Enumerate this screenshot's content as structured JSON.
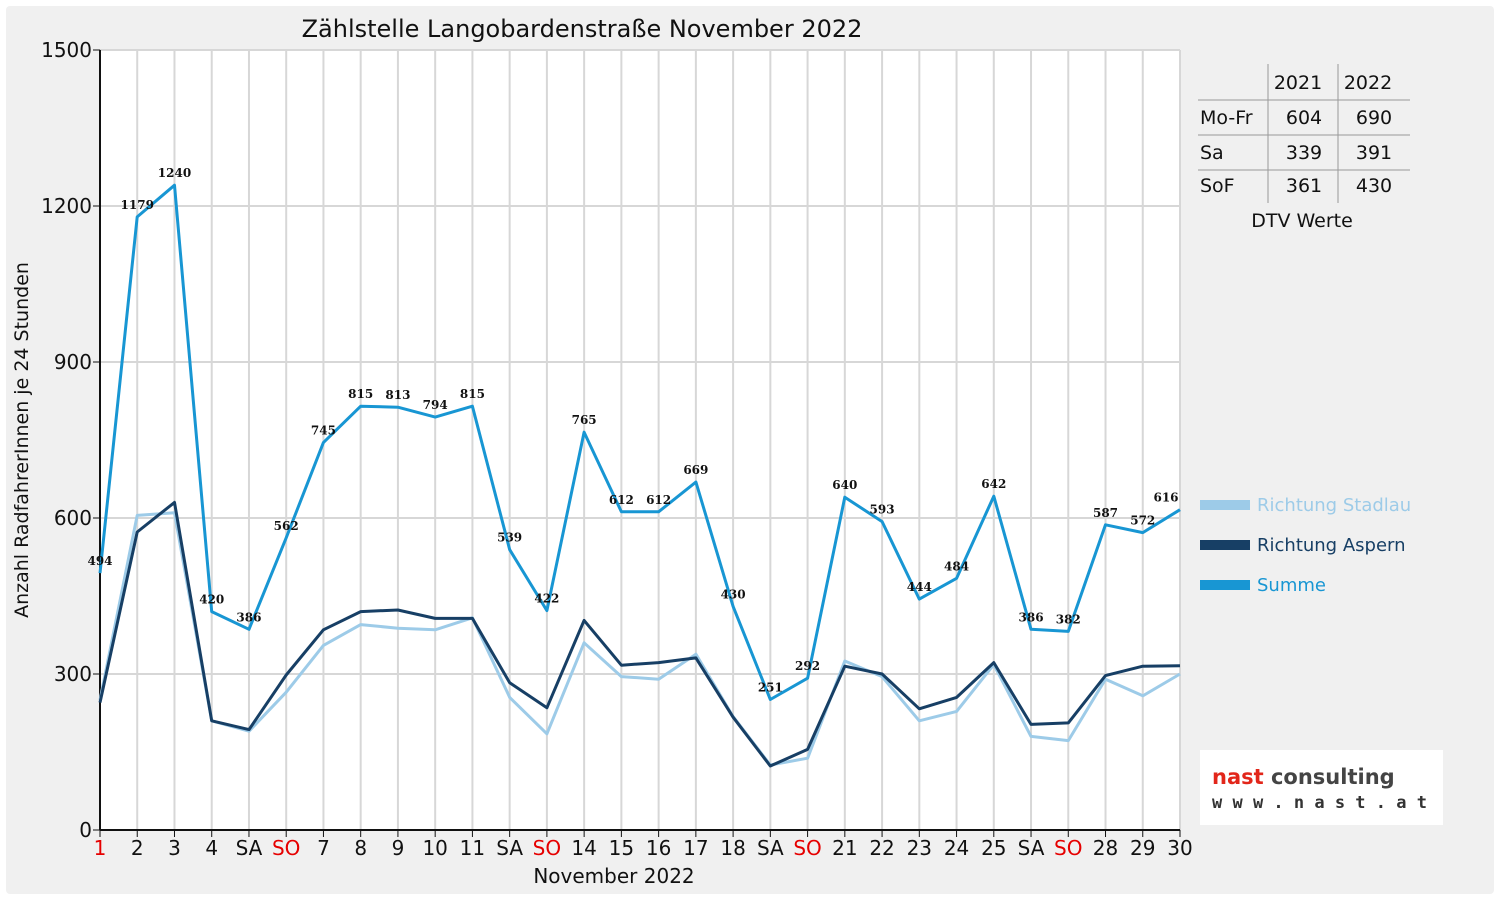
{
  "chart_data": {
    "type": "line",
    "title": "Zählstelle Langobardenstraße November 2022",
    "xlabel": "November 2022",
    "ylabel": "Anzahl RadfahrerInnen je 24 Stunden",
    "ylim": [
      0,
      1500
    ],
    "yticks": [
      "0",
      "300",
      "600",
      "900",
      "1200",
      "1500"
    ],
    "grid": true,
    "legend_position": "right",
    "categories": [
      "1",
      "2",
      "3",
      "4",
      "SA",
      "SO",
      "7",
      "8",
      "9",
      "10",
      "11",
      "SA",
      "SO",
      "14",
      "15",
      "16",
      "17",
      "18",
      "SA",
      "SO",
      "21",
      "22",
      "23",
      "24",
      "25",
      "SA",
      "SO",
      "28",
      "29",
      "30"
    ],
    "red_categories": [
      0,
      5,
      12,
      19,
      26
    ],
    "series": [
      {
        "name": "Richtung Stadlau",
        "color": "#9dcbe8",
        "values": [
          250,
          605,
          610,
          210,
          190,
          265,
          355,
          395,
          388,
          385,
          408,
          255,
          185,
          360,
          295,
          290,
          338,
          218,
          125,
          138,
          325,
          295,
          210,
          228,
          318,
          180,
          172,
          290,
          258,
          300
        ]
      },
      {
        "name": "Richtung Aspern",
        "color": "#173f65",
        "values": [
          245,
          573,
          630,
          210,
          193,
          298,
          385,
          420,
          423,
          407,
          407,
          283,
          235,
          403,
          317,
          322,
          331,
          217,
          123,
          155,
          315,
          300,
          233,
          255,
          322,
          203,
          206,
          297,
          315,
          316
        ]
      },
      {
        "name": "Summe",
        "color": "#1896d3",
        "values": [
          494,
          1179,
          1240,
          420,
          386,
          562,
          745,
          815,
          813,
          794,
          815,
          539,
          422,
          765,
          612,
          612,
          669,
          430,
          251,
          292,
          640,
          593,
          444,
          484,
          642,
          386,
          382,
          587,
          572,
          616
        ]
      }
    ],
    "data_labels": [
      "494",
      "1179",
      "1240",
      "420",
      "386",
      "562",
      "745",
      "815",
      "813",
      "794",
      "815",
      "539",
      "422",
      "765",
      "612",
      "612",
      "669",
      "430",
      "251",
      "292",
      "640",
      "593",
      "444",
      "484",
      "642",
      "386",
      "382",
      "587",
      "572",
      "616"
    ]
  },
  "dtv_table": {
    "headers": [
      "",
      "2021",
      "2022"
    ],
    "rows": [
      {
        "label": "Mo-Fr",
        "v2021": "604",
        "v2022": "690"
      },
      {
        "label": "Sa",
        "v2021": "339",
        "v2022": "391"
      },
      {
        "label": "SoF",
        "v2021": "361",
        "v2022": "430"
      }
    ],
    "caption": "DTV Werte"
  },
  "logo": {
    "name": "nast consulting",
    "url": "w w w . n a s t . a t"
  }
}
